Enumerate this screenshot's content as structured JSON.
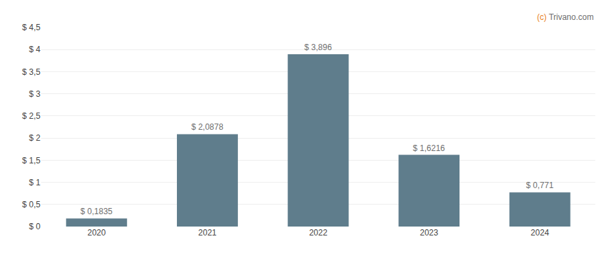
{
  "chart_data": {
    "type": "bar",
    "categories": [
      "2020",
      "2021",
      "2022",
      "2023",
      "2024"
    ],
    "values": [
      0.1835,
      2.0878,
      3.896,
      1.6216,
      0.771
    ],
    "value_labels": [
      "$ 0,1835",
      "$ 2,0878",
      "$ 3,896",
      "$ 1,6216",
      "$ 0,771"
    ],
    "data_labels": true,
    "color": "#5f7d8c",
    "ylim": [
      0,
      4.5
    ],
    "yticks": [
      {
        "value": 0,
        "label": "$ 0"
      },
      {
        "value": 0.5,
        "label": "$ 0,5"
      },
      {
        "value": 1.0,
        "label": "$ 1"
      },
      {
        "value": 1.5,
        "label": "$ 1,5"
      },
      {
        "value": 2.0,
        "label": "$ 2"
      },
      {
        "value": 2.5,
        "label": "$ 2,5"
      },
      {
        "value": 3.0,
        "label": "$ 3"
      },
      {
        "value": 3.5,
        "label": "$ 3,5"
      },
      {
        "value": 4.0,
        "label": "$ 4"
      },
      {
        "value": 4.5,
        "label": "$ 4,5"
      }
    ],
    "grid": true,
    "annotations": [
      {
        "text": "(c)",
        "color": "#e8821e"
      },
      {
        "text": "Trivano.com",
        "color": "#6e6e6e"
      }
    ]
  }
}
